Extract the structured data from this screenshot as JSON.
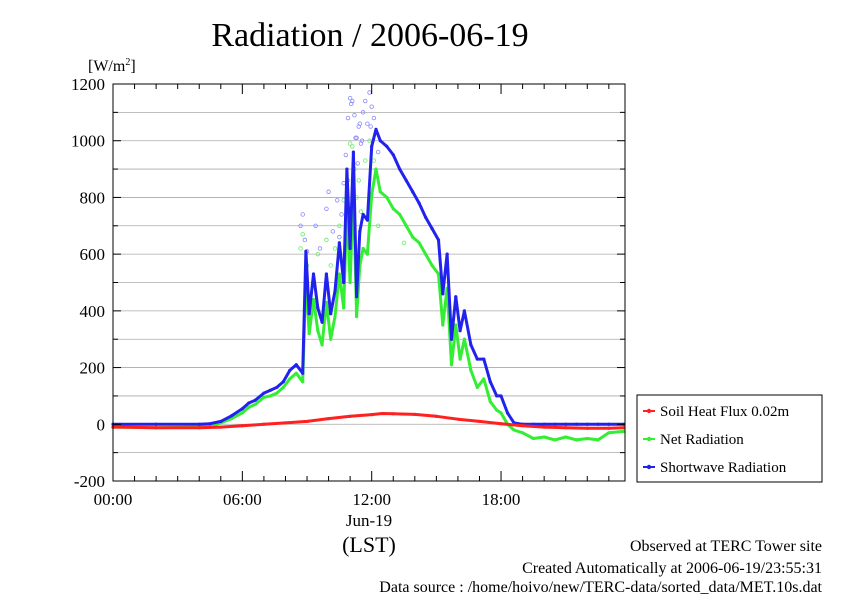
{
  "chart_data": {
    "type": "line",
    "title": "Radiation / 2006-06-19",
    "ylabel_unit": "[W/m",
    "ylabel_unit_exp": "2",
    "ylabel_unit_close": "]",
    "xlabel_date": "Jun-19",
    "xlabel": "(LST)",
    "xlim": [
      0,
      23.75
    ],
    "ylim": [
      -200,
      1200
    ],
    "yticks": [
      -200,
      0,
      200,
      400,
      600,
      800,
      1000,
      1200
    ],
    "ytick_labels": [
      "-200",
      "0",
      "200",
      "400",
      "600",
      "800",
      "1000",
      "1200"
    ],
    "xticks": [
      0,
      6,
      12,
      18
    ],
    "xtick_labels": [
      "00:00",
      "06:00",
      "12:00",
      "18:00"
    ],
    "grid": true,
    "legend_position": "right",
    "series": [
      {
        "name": "Soil Heat Flux 0.02m",
        "color": "#ff2020",
        "x": [
          0,
          2,
          4,
          5,
          6,
          7,
          8,
          9,
          10,
          11,
          12,
          12.5,
          13,
          14,
          15,
          16,
          17,
          18,
          19,
          20,
          21,
          22,
          23,
          23.7
        ],
        "y": [
          -10,
          -12,
          -12,
          -10,
          -5,
          0,
          5,
          10,
          20,
          28,
          34,
          38,
          37,
          35,
          28,
          18,
          10,
          2,
          -5,
          -10,
          -12,
          -14,
          -14,
          -12
        ]
      },
      {
        "name": "Net Radiation",
        "color": "#33ee33",
        "x": [
          0,
          2,
          4,
          4.5,
          5,
          5.5,
          6,
          6.3,
          6.6,
          7,
          7.3,
          7.6,
          7.9,
          8.2,
          8.5,
          8.8,
          8.95,
          9.1,
          9.3,
          9.5,
          9.7,
          9.9,
          10.1,
          10.3,
          10.5,
          10.7,
          10.85,
          11,
          11.15,
          11.3,
          11.45,
          11.6,
          11.8,
          12,
          12.2,
          12.4,
          12.7,
          13,
          13.3,
          13.6,
          13.9,
          14.2,
          14.5,
          14.8,
          15.1,
          15.3,
          15.5,
          15.7,
          15.9,
          16.1,
          16.3,
          16.6,
          16.9,
          17.2,
          17.5,
          17.8,
          18,
          18.3,
          18.6,
          19,
          19.5,
          20,
          20.5,
          21,
          21.5,
          22,
          22.5,
          23,
          23.7
        ],
        "y": [
          -10,
          -12,
          -10,
          -8,
          5,
          20,
          40,
          60,
          70,
          95,
          100,
          110,
          130,
          160,
          180,
          150,
          520,
          320,
          440,
          330,
          280,
          430,
          300,
          380,
          530,
          410,
          780,
          500,
          830,
          380,
          560,
          620,
          600,
          810,
          900,
          820,
          800,
          760,
          740,
          700,
          660,
          640,
          600,
          560,
          530,
          350,
          480,
          210,
          350,
          230,
          300,
          190,
          130,
          160,
          80,
          50,
          40,
          0,
          -20,
          -30,
          -50,
          -45,
          -55,
          -45,
          -55,
          -50,
          -55,
          -30,
          -25
        ]
      },
      {
        "name": "Shortwave Radiation",
        "color": "#2222ee",
        "x": [
          0,
          2,
          4,
          4.5,
          5,
          5.5,
          6,
          6.3,
          6.6,
          7,
          7.3,
          7.6,
          7.9,
          8.2,
          8.5,
          8.8,
          8.95,
          9.1,
          9.3,
          9.5,
          9.7,
          9.9,
          10.1,
          10.3,
          10.5,
          10.7,
          10.85,
          11,
          11.15,
          11.3,
          11.45,
          11.6,
          11.8,
          12,
          12.2,
          12.4,
          12.7,
          13,
          13.3,
          13.6,
          13.9,
          14.2,
          14.5,
          14.8,
          15.1,
          15.3,
          15.5,
          15.7,
          15.9,
          16.1,
          16.3,
          16.6,
          16.9,
          17.2,
          17.5,
          17.8,
          18,
          18.3,
          18.6,
          19,
          19.5,
          20,
          20.5,
          21,
          21.5,
          22,
          22.5,
          23,
          23.7
        ],
        "y": [
          0,
          0,
          0,
          2,
          10,
          30,
          55,
          75,
          85,
          110,
          120,
          130,
          150,
          190,
          210,
          180,
          610,
          390,
          530,
          410,
          360,
          530,
          390,
          470,
          640,
          500,
          900,
          620,
          960,
          450,
          680,
          740,
          720,
          980,
          1040,
          1000,
          980,
          950,
          900,
          860,
          820,
          780,
          730,
          690,
          650,
          460,
          600,
          300,
          450,
          330,
          400,
          280,
          230,
          230,
          150,
          100,
          100,
          40,
          5,
          0,
          0,
          0,
          0,
          0,
          0,
          0,
          0,
          0,
          0
        ]
      }
    ],
    "scatter_clouds": [
      {
        "color": "#8888ff",
        "x": [
          8.7,
          8.8,
          8.9,
          9.0,
          9.4,
          9.6,
          9.9,
          10.0,
          10.2,
          10.4,
          10.6,
          10.8,
          10.9,
          11.0,
          11.05,
          11.1,
          11.2,
          11.3,
          11.4,
          11.5,
          11.6,
          11.7,
          11.8,
          11.9,
          12.0,
          12.1,
          12.3,
          10.5,
          10.7,
          11.25,
          11.35,
          11.45,
          11.55,
          11.95
        ],
        "y": [
          700,
          740,
          650,
          610,
          700,
          620,
          760,
          820,
          680,
          790,
          740,
          950,
          1080,
          1150,
          1130,
          1140,
          1090,
          1010,
          1050,
          990,
          1100,
          1140,
          1060,
          1170,
          1120,
          1080,
          960,
          660,
          850,
          1010,
          920,
          1060,
          1000,
          1050
        ]
      },
      {
        "color": "#66ee66",
        "x": [
          8.7,
          8.8,
          9.0,
          9.5,
          9.9,
          10.1,
          10.3,
          10.5,
          10.7,
          10.9,
          11.0,
          11.1,
          11.2,
          11.3,
          11.4,
          11.5,
          11.7,
          11.9,
          12.1,
          12.3,
          13.5
        ],
        "y": [
          620,
          670,
          560,
          600,
          650,
          560,
          620,
          700,
          790,
          860,
          990,
          980,
          900,
          800,
          860,
          750,
          930,
          1000,
          930,
          700,
          640
        ]
      }
    ]
  },
  "legend": {
    "items": [
      {
        "label": "Soil Heat Flux 0.02m",
        "color": "#ff2020"
      },
      {
        "label": "Net Radiation",
        "color": "#33ee33"
      },
      {
        "label": "Shortwave Radiation",
        "color": "#2222ee"
      }
    ]
  },
  "footer": {
    "line1": "Observed at TERC Tower site",
    "line2": "Created Automatically at 2006-06-19/23:55:31",
    "line3": "Data source : /home/hoivo/new/TERC-data/sorted_data/MET.10s.dat"
  }
}
